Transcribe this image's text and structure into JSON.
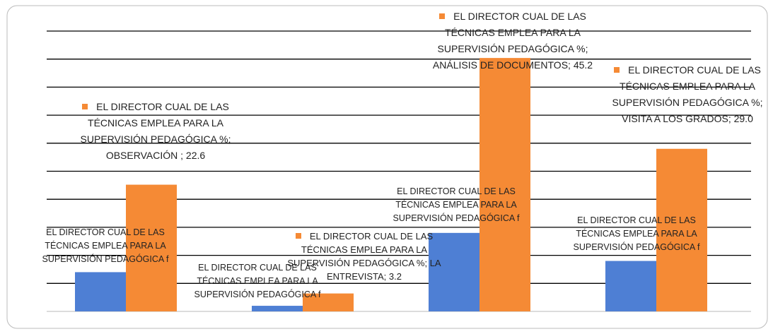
{
  "chart_data": {
    "type": "bar",
    "categories": [
      "OBSERVACIÓN ",
      "LA ENTREVISTA",
      "ANÁLISIS DE DOCUMENTOS",
      "VISITA A LOS GRADOS"
    ],
    "series": [
      {
        "name": "EL DIRECTOR CUAL DE LAS TÉCNICAS EMPLEA PARA LA SUPERVISIÓN PEDAGÓGICA f",
        "color": "#4e7fd4",
        "values": [
          7,
          1,
          14,
          9
        ]
      },
      {
        "name": "EL DIRECTOR CUAL DE LAS TÉCNICAS EMPLEA PARA LA SUPERVISIÓN PEDAGÓGICA %",
        "color": "#f58a35",
        "values": [
          22.6,
          3.2,
          45.2,
          29.0
        ],
        "value_labels": [
          "22.6",
          "3.2",
          "45.2",
          "29.0"
        ]
      }
    ],
    "label_separator": "; ",
    "ylim": [
      0,
      50
    ],
    "yticks": [
      0,
      5,
      10,
      15,
      20,
      25,
      30,
      35,
      40,
      45,
      50
    ],
    "grid": true
  }
}
